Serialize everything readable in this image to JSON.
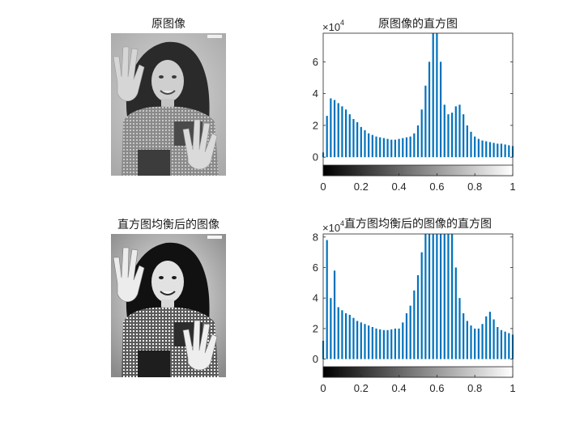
{
  "figure": {
    "background": "#ffffff",
    "photo_placeholder": "grayscale-portrait"
  },
  "chart_data": [
    {
      "type": "image",
      "title": "原图像",
      "content": "grayscale photo of a smiling woman with curly hair raising both hands"
    },
    {
      "type": "bar",
      "title": "原图像的直方图",
      "xlim": [
        0,
        1
      ],
      "ylim": [
        -0.5,
        7.8
      ],
      "y_multiplier": "×10",
      "y_exponent": "4",
      "xticks": [
        "0",
        "0.2",
        "0.4",
        "0.6",
        "0.8",
        "1"
      ],
      "yticks": [
        "0",
        "2",
        "4",
        "6"
      ],
      "colorbar": "gray",
      "bar_color": "#0072BD",
      "x": [
        0.0,
        0.02,
        0.04,
        0.06,
        0.08,
        0.1,
        0.12,
        0.14,
        0.16,
        0.18,
        0.2,
        0.22,
        0.24,
        0.26,
        0.28,
        0.3,
        0.32,
        0.34,
        0.36,
        0.38,
        0.4,
        0.42,
        0.44,
        0.46,
        0.48,
        0.5,
        0.52,
        0.54,
        0.56,
        0.58,
        0.6,
        0.62,
        0.64,
        0.66,
        0.68,
        0.7,
        0.72,
        0.74,
        0.76,
        0.78,
        0.8,
        0.82,
        0.84,
        0.86,
        0.88,
        0.9,
        0.92,
        0.94,
        0.96,
        0.98,
        1.0
      ],
      "values": [
        0.3,
        2.6,
        3.7,
        3.6,
        3.4,
        3.2,
        3.0,
        2.7,
        2.4,
        2.2,
        1.9,
        1.7,
        1.5,
        1.4,
        1.3,
        1.25,
        1.2,
        1.15,
        1.1,
        1.1,
        1.15,
        1.2,
        1.25,
        1.3,
        1.5,
        2.0,
        3.0,
        4.5,
        6.0,
        7.8,
        7.8,
        6.0,
        3.3,
        2.7,
        2.8,
        3.2,
        3.3,
        2.7,
        2.0,
        1.6,
        1.3,
        1.15,
        1.05,
        1.0,
        0.95,
        0.9,
        0.85,
        0.85,
        0.8,
        0.75,
        0.7
      ]
    },
    {
      "type": "image",
      "title": "直方图均衡后的图像",
      "content": "histogram-equalized grayscale photo of the same woman, higher contrast"
    },
    {
      "type": "bar",
      "title": "直方图均衡后的图像的直方图",
      "xlim": [
        0,
        1
      ],
      "ylim": [
        -0.5,
        8.2
      ],
      "y_multiplier": "×10",
      "y_exponent": "4",
      "xticks": [
        "0",
        "0.2",
        "0.4",
        "0.6",
        "0.8",
        "1"
      ],
      "yticks": [
        "0",
        "2",
        "4",
        "6",
        "8"
      ],
      "colorbar": "gray",
      "bar_color": "#0072BD",
      "x": [
        0.0,
        0.02,
        0.04,
        0.06,
        0.08,
        0.1,
        0.12,
        0.14,
        0.16,
        0.18,
        0.2,
        0.22,
        0.24,
        0.26,
        0.28,
        0.3,
        0.32,
        0.34,
        0.36,
        0.38,
        0.4,
        0.42,
        0.44,
        0.46,
        0.48,
        0.5,
        0.52,
        0.54,
        0.56,
        0.58,
        0.6,
        0.62,
        0.64,
        0.66,
        0.68,
        0.7,
        0.72,
        0.74,
        0.76,
        0.78,
        0.8,
        0.82,
        0.84,
        0.86,
        0.88,
        0.9,
        0.92,
        0.94,
        0.96,
        0.98,
        1.0
      ],
      "values": [
        1.2,
        7.8,
        4.0,
        5.8,
        3.4,
        3.2,
        3.0,
        2.9,
        2.7,
        2.5,
        2.4,
        2.3,
        2.2,
        2.1,
        2.0,
        1.95,
        1.9,
        1.9,
        1.95,
        2.0,
        2.0,
        2.4,
        3.0,
        3.5,
        4.5,
        5.5,
        7.0,
        8.2,
        8.2,
        8.2,
        8.2,
        8.2,
        8.2,
        8.2,
        8.2,
        6.0,
        4.0,
        3.0,
        2.5,
        2.2,
        2.0,
        2.0,
        2.3,
        2.8,
        3.1,
        2.6,
        2.1,
        1.9,
        1.8,
        1.7,
        1.6
      ]
    }
  ]
}
